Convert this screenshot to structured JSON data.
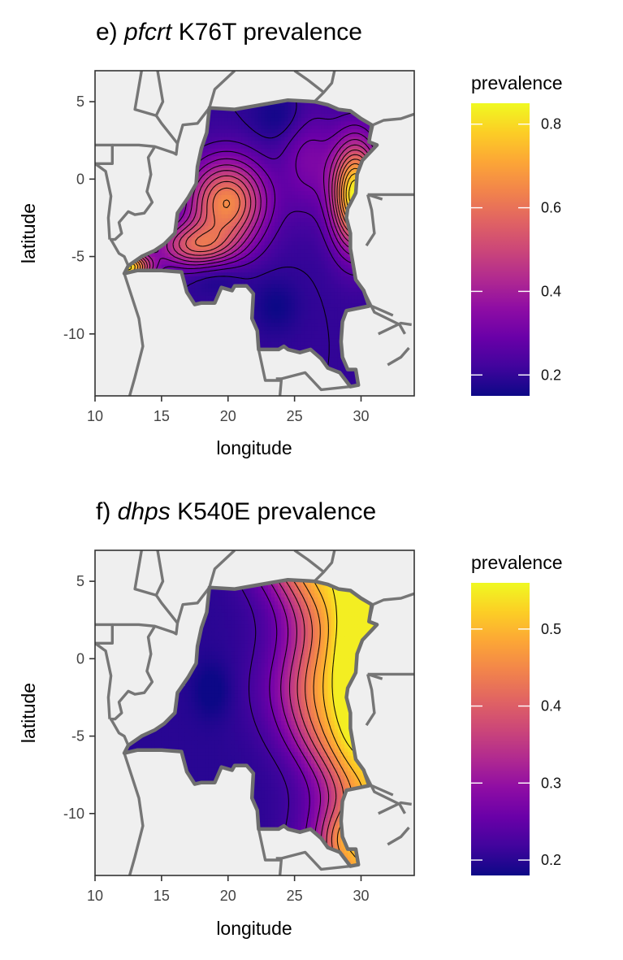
{
  "chart_data": [
    {
      "type": "heatmap",
      "title_prefix": "e) ",
      "title_gene": "pfcrt",
      "title_suffix": " K76T prevalence",
      "xlabel": "longitude",
      "ylabel": "latitude",
      "xlim": [
        10,
        34
      ],
      "ylim": [
        -14,
        7
      ],
      "x_ticks": [
        10,
        15,
        20,
        25,
        30
      ],
      "y_ticks": [
        5,
        0,
        -5,
        -10
      ],
      "legend_title": "prevalence",
      "legend_range": [
        0.15,
        0.85
      ],
      "legend_ticks": [
        0.2,
        0.4,
        0.6,
        0.8
      ],
      "hotspots": [
        {
          "lon": 29.6,
          "lat": -1.2,
          "value": 0.85
        },
        {
          "lon": 12.6,
          "lat": -5.7,
          "value": 0.8
        },
        {
          "lon": 19.9,
          "lat": -1.3,
          "value": 0.65
        },
        {
          "lon": 19.5,
          "lat": -4.0,
          "value": 0.5
        }
      ],
      "background_value": 0.2,
      "minimum_value": 0.15
    },
    {
      "type": "heatmap",
      "title_prefix": "f) ",
      "title_gene": "dhps",
      "title_suffix": " K540E prevalence",
      "xlabel": "longitude",
      "ylabel": "latitude",
      "xlim": [
        10,
        34
      ],
      "ylim": [
        -14,
        7
      ],
      "x_ticks": [
        10,
        15,
        20,
        25,
        30
      ],
      "y_ticks": [
        5,
        0,
        -5,
        -10
      ],
      "legend_title": "prevalence",
      "legend_range": [
        0.18,
        0.56
      ],
      "legend_ticks": [
        0.2,
        0.3,
        0.4,
        0.5
      ],
      "east_max": 0.55,
      "west_min": 0.2
    }
  ]
}
